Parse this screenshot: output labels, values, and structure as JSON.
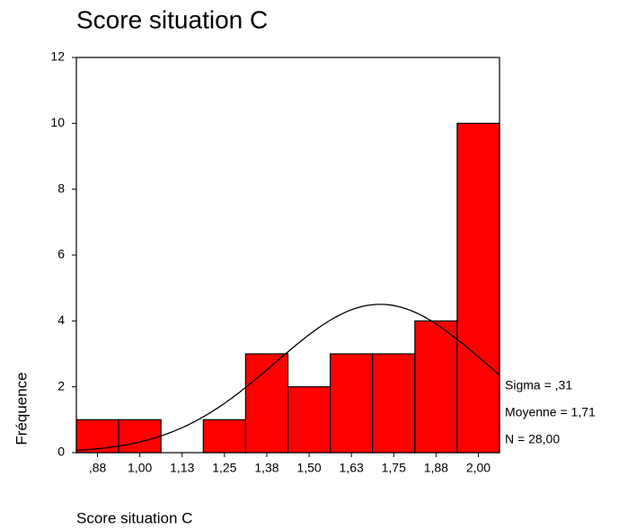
{
  "chart_data": {
    "type": "histogram",
    "title": "Score situation C",
    "x_label": "Score situation C",
    "y_label": "Fréquence",
    "bins": [
      0.8125,
      0.9375,
      1.0625,
      1.1875,
      1.3125,
      1.4375,
      1.5625,
      1.6875,
      1.8125,
      1.9375,
      2.0625
    ],
    "values": [
      1,
      1,
      0,
      1,
      3,
      2,
      3,
      3,
      4,
      10
    ],
    "color": "#ff0000",
    "xlim": [
      0.8125,
      2.0625
    ],
    "xticks": [
      {
        "value": 0.875,
        "label": ",88"
      },
      {
        "value": 1.0,
        "label": "1,00"
      },
      {
        "value": 1.125,
        "label": "1,13"
      },
      {
        "value": 1.25,
        "label": "1,25"
      },
      {
        "value": 1.375,
        "label": "1,38"
      },
      {
        "value": 1.5,
        "label": "1,50"
      },
      {
        "value": 1.625,
        "label": "1,63"
      },
      {
        "value": 1.75,
        "label": "1,75"
      },
      {
        "value": 1.875,
        "label": "1,88"
      },
      {
        "value": 2.0,
        "label": "2,00"
      }
    ],
    "ylim": [
      0,
      12
    ],
    "yticks": [
      0,
      2,
      4,
      6,
      8,
      10,
      12
    ],
    "stats": [
      {
        "name": "Sigma",
        "value": 0.31,
        "label": "Sigma = ,31"
      },
      {
        "name": "Moyenne",
        "value": 1.71,
        "label": "Moyenne = 1,71"
      },
      {
        "name": "N",
        "value": 28,
        "label": "N = 28,00"
      }
    ]
  }
}
